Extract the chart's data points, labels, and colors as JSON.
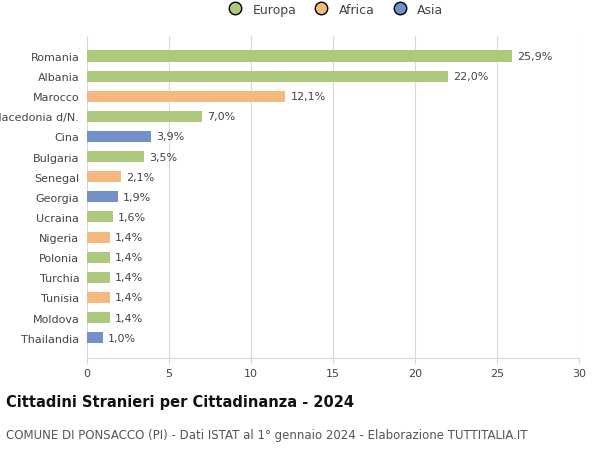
{
  "categories": [
    "Thailandia",
    "Moldova",
    "Tunisia",
    "Turchia",
    "Polonia",
    "Nigeria",
    "Ucraina",
    "Georgia",
    "Senegal",
    "Bulgaria",
    "Cina",
    "Macedonia d/N.",
    "Marocco",
    "Albania",
    "Romania"
  ],
  "values": [
    1.0,
    1.4,
    1.4,
    1.4,
    1.4,
    1.4,
    1.6,
    1.9,
    2.1,
    3.5,
    3.9,
    7.0,
    12.1,
    22.0,
    25.9
  ],
  "labels": [
    "1,0%",
    "1,4%",
    "1,4%",
    "1,4%",
    "1,4%",
    "1,4%",
    "1,6%",
    "1,9%",
    "2,1%",
    "3,5%",
    "3,9%",
    "7,0%",
    "12,1%",
    "22,0%",
    "25,9%"
  ],
  "continents": [
    "Asia",
    "Europa",
    "Africa",
    "Europa",
    "Europa",
    "Africa",
    "Europa",
    "Asia",
    "Africa",
    "Europa",
    "Asia",
    "Europa",
    "Africa",
    "Europa",
    "Europa"
  ],
  "colors": {
    "Europa": "#adc97e",
    "Africa": "#f5b97f",
    "Asia": "#7191c8"
  },
  "legend": [
    "Europa",
    "Africa",
    "Asia"
  ],
  "legend_colors": [
    "#adc97e",
    "#f5b97f",
    "#7191c8"
  ],
  "xlim": [
    0,
    30
  ],
  "xticks": [
    0,
    5,
    10,
    15,
    20,
    25,
    30
  ],
  "title": "Cittadini Stranieri per Cittadinanza - 2024",
  "subtitle": "COMUNE DI PONSACCO (PI) - Dati ISTAT al 1° gennaio 2024 - Elaborazione TUTTITALIA.IT",
  "background_color": "#ffffff",
  "grid_color": "#d8d8d8",
  "bar_height": 0.55,
  "title_fontsize": 10.5,
  "subtitle_fontsize": 8.5,
  "label_fontsize": 8,
  "tick_fontsize": 8,
  "legend_fontsize": 9
}
